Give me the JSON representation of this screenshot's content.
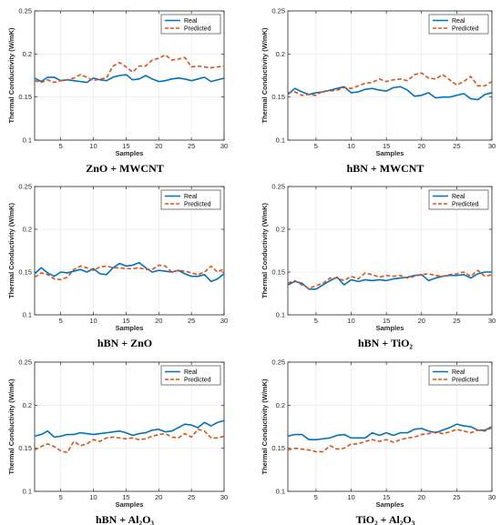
{
  "colors": {
    "real": "#0072BD",
    "predicted": "#D95319",
    "axis": "#262626",
    "grid": "#e6e6e6"
  },
  "chart_data": [
    {
      "type": "line",
      "caption": "ZnO + MWCNT",
      "xlabel": "Samples",
      "ylabel": "Thermal Conductivity (W/mK)",
      "xlim": [
        1,
        30
      ],
      "ylim": [
        0.1,
        0.25
      ],
      "xticks": [
        "5",
        "10",
        "15",
        "20",
        "25",
        "30"
      ],
      "yticks": [
        "0.1",
        "0.15",
        "0.2",
        "0.25"
      ],
      "legend": [
        "Real",
        "Predicted"
      ],
      "legend_position": "top-right",
      "x": [
        1,
        2,
        3,
        4,
        5,
        6,
        7,
        8,
        9,
        10,
        11,
        12,
        13,
        14,
        15,
        16,
        17,
        18,
        19,
        20,
        21,
        22,
        23,
        24,
        25,
        26,
        27,
        28,
        29,
        30
      ],
      "series": [
        {
          "name": "Real",
          "values": [
            0.172,
            0.168,
            0.173,
            0.173,
            0.169,
            0.17,
            0.169,
            0.168,
            0.167,
            0.172,
            0.17,
            0.169,
            0.173,
            0.175,
            0.176,
            0.17,
            0.171,
            0.175,
            0.171,
            0.168,
            0.169,
            0.171,
            0.172,
            0.171,
            0.169,
            0.171,
            0.173,
            0.168,
            0.17,
            0.172
          ]
        },
        {
          "name": "Predicted",
          "values": [
            0.169,
            0.167,
            0.17,
            0.167,
            0.169,
            0.17,
            0.172,
            0.176,
            0.173,
            0.169,
            0.171,
            0.172,
            0.186,
            0.19,
            0.185,
            0.179,
            0.186,
            0.186,
            0.193,
            0.195,
            0.199,
            0.193,
            0.194,
            0.196,
            0.185,
            0.186,
            0.185,
            0.184,
            0.185,
            0.186
          ]
        }
      ]
    },
    {
      "type": "line",
      "caption": "hBN + MWCNT",
      "xlabel": "Samples",
      "ylabel": "Thermal Conductivity (W/mK)",
      "xlim": [
        1,
        30
      ],
      "ylim": [
        0.1,
        0.25
      ],
      "xticks": [
        "5",
        "10",
        "15",
        "20",
        "25",
        "30"
      ],
      "yticks": [
        "0.1",
        "0.15",
        "0.2",
        "0.25"
      ],
      "legend": [
        "Real",
        "Predicted"
      ],
      "legend_position": "top-right",
      "x": [
        1,
        2,
        3,
        4,
        5,
        6,
        7,
        8,
        9,
        10,
        11,
        12,
        13,
        14,
        15,
        16,
        17,
        18,
        19,
        20,
        21,
        22,
        23,
        24,
        25,
        26,
        27,
        28,
        29,
        30
      ],
      "series": [
        {
          "name": "Real",
          "values": [
            0.153,
            0.16,
            0.156,
            0.153,
            0.155,
            0.156,
            0.158,
            0.16,
            0.162,
            0.155,
            0.156,
            0.159,
            0.16,
            0.158,
            0.157,
            0.161,
            0.162,
            0.158,
            0.151,
            0.152,
            0.155,
            0.149,
            0.15,
            0.15,
            0.152,
            0.154,
            0.148,
            0.147,
            0.153,
            0.155
          ]
        },
        {
          "name": "Predicted",
          "values": [
            0.155,
            0.156,
            0.152,
            0.153,
            0.152,
            0.157,
            0.157,
            0.158,
            0.161,
            0.16,
            0.163,
            0.166,
            0.167,
            0.171,
            0.168,
            0.17,
            0.171,
            0.169,
            0.176,
            0.178,
            0.172,
            0.171,
            0.176,
            0.17,
            0.164,
            0.168,
            0.174,
            0.163,
            0.163,
            0.168
          ]
        }
      ]
    },
    {
      "type": "line",
      "caption": "hBN + ZnO",
      "xlabel": "Samples",
      "ylabel": "Thermal Conductivity (W/mK)",
      "xlim": [
        1,
        30
      ],
      "ylim": [
        0.1,
        0.25
      ],
      "xticks": [
        "5",
        "10",
        "15",
        "20",
        "25",
        "30"
      ],
      "yticks": [
        "0.1",
        "0.15",
        "0.2",
        "0.25"
      ],
      "legend": [
        "Real",
        "Predicted"
      ],
      "legend_position": "top-right",
      "x": [
        1,
        2,
        3,
        4,
        5,
        6,
        7,
        8,
        9,
        10,
        11,
        12,
        13,
        14,
        15,
        16,
        17,
        18,
        19,
        20,
        21,
        22,
        23,
        24,
        25,
        26,
        27,
        28,
        29,
        30
      ],
      "series": [
        {
          "name": "Real",
          "values": [
            0.148,
            0.155,
            0.149,
            0.145,
            0.15,
            0.149,
            0.151,
            0.153,
            0.15,
            0.154,
            0.148,
            0.147,
            0.155,
            0.16,
            0.157,
            0.158,
            0.161,
            0.155,
            0.15,
            0.152,
            0.151,
            0.15,
            0.152,
            0.148,
            0.145,
            0.145,
            0.147,
            0.139,
            0.142,
            0.148
          ]
        },
        {
          "name": "Predicted",
          "values": [
            0.144,
            0.149,
            0.147,
            0.142,
            0.141,
            0.144,
            0.153,
            0.157,
            0.155,
            0.152,
            0.156,
            0.157,
            0.155,
            0.155,
            0.154,
            0.154,
            0.155,
            0.153,
            0.153,
            0.158,
            0.157,
            0.15,
            0.152,
            0.151,
            0.149,
            0.147,
            0.15,
            0.157,
            0.15,
            0.154
          ]
        }
      ]
    },
    {
      "type": "line",
      "caption": "hBN + TiO₂",
      "xlabel": "Samples",
      "ylabel": "Thermal Conductivity (W/mK)",
      "xlim": [
        1,
        30
      ],
      "ylim": [
        0.1,
        0.25
      ],
      "xticks": [
        "5",
        "10",
        "15",
        "20",
        "25",
        "30"
      ],
      "yticks": [
        "0.1",
        "0.15",
        "0.2",
        "0.25"
      ],
      "legend": [
        "Real",
        "Predicted"
      ],
      "legend_position": "top-right",
      "x": [
        1,
        2,
        3,
        4,
        5,
        6,
        7,
        8,
        9,
        10,
        11,
        12,
        13,
        14,
        15,
        16,
        17,
        18,
        19,
        20,
        21,
        22,
        23,
        24,
        25,
        26,
        27,
        28,
        29,
        30
      ],
      "series": [
        {
          "name": "Real",
          "values": [
            0.135,
            0.139,
            0.137,
            0.13,
            0.13,
            0.135,
            0.14,
            0.144,
            0.135,
            0.141,
            0.139,
            0.141,
            0.14,
            0.141,
            0.14,
            0.142,
            0.143,
            0.144,
            0.146,
            0.147,
            0.14,
            0.143,
            0.145,
            0.146,
            0.146,
            0.147,
            0.143,
            0.148,
            0.15,
            0.15
          ]
        },
        {
          "name": "Predicted",
          "values": [
            0.137,
            0.14,
            0.135,
            0.131,
            0.134,
            0.137,
            0.143,
            0.143,
            0.14,
            0.145,
            0.142,
            0.149,
            0.147,
            0.144,
            0.146,
            0.145,
            0.146,
            0.143,
            0.145,
            0.147,
            0.148,
            0.146,
            0.145,
            0.147,
            0.148,
            0.15,
            0.145,
            0.152,
            0.145,
            0.147
          ]
        }
      ]
    },
    {
      "type": "line",
      "caption": "hBN + Al₂O₃",
      "xlabel": "Samples",
      "ylabel": "Thermal Conductivity (W/mK)",
      "xlim": [
        1,
        30
      ],
      "ylim": [
        0.1,
        0.25
      ],
      "xticks": [
        "5",
        "10",
        "15",
        "20",
        "25",
        "30"
      ],
      "yticks": [
        "0.1",
        "0.15",
        "0.2",
        "0.25"
      ],
      "legend": [
        "Real",
        "Predicted"
      ],
      "legend_position": "top-right",
      "x": [
        1,
        2,
        3,
        4,
        5,
        6,
        7,
        8,
        9,
        10,
        11,
        12,
        13,
        14,
        15,
        16,
        17,
        18,
        19,
        20,
        21,
        22,
        23,
        24,
        25,
        26,
        27,
        28,
        29,
        30
      ],
      "series": [
        {
          "name": "Real",
          "values": [
            0.164,
            0.166,
            0.17,
            0.163,
            0.164,
            0.166,
            0.166,
            0.168,
            0.167,
            0.166,
            0.167,
            0.168,
            0.169,
            0.17,
            0.168,
            0.165,
            0.167,
            0.168,
            0.171,
            0.172,
            0.169,
            0.17,
            0.174,
            0.178,
            0.177,
            0.174,
            0.18,
            0.176,
            0.18,
            0.182
          ]
        },
        {
          "name": "Predicted",
          "values": [
            0.148,
            0.152,
            0.155,
            0.152,
            0.147,
            0.145,
            0.158,
            0.153,
            0.155,
            0.16,
            0.158,
            0.162,
            0.163,
            0.162,
            0.161,
            0.162,
            0.16,
            0.161,
            0.164,
            0.166,
            0.167,
            0.163,
            0.162,
            0.167,
            0.163,
            0.172,
            0.17,
            0.162,
            0.162,
            0.164
          ]
        }
      ]
    },
    {
      "type": "line",
      "caption": "TiO₂ + Al₂O₃",
      "xlabel": "Samples",
      "ylabel": "Thermal Conductivity (W/mK)",
      "xlim": [
        1,
        30
      ],
      "ylim": [
        0.1,
        0.25
      ],
      "xticks": [
        "5",
        "10",
        "15",
        "20",
        "25",
        "30"
      ],
      "yticks": [
        "0.1",
        "0.15",
        "0.2",
        "0.25"
      ],
      "legend": [
        "Real",
        "Predicted"
      ],
      "legend_position": "top-right",
      "x": [
        1,
        2,
        3,
        4,
        5,
        6,
        7,
        8,
        9,
        10,
        11,
        12,
        13,
        14,
        15,
        16,
        17,
        18,
        19,
        20,
        21,
        22,
        23,
        24,
        25,
        26,
        27,
        28,
        29,
        30
      ],
      "series": [
        {
          "name": "Real",
          "values": [
            0.164,
            0.166,
            0.166,
            0.16,
            0.16,
            0.161,
            0.162,
            0.165,
            0.166,
            0.162,
            0.162,
            0.162,
            0.168,
            0.165,
            0.168,
            0.165,
            0.168,
            0.168,
            0.172,
            0.173,
            0.17,
            0.168,
            0.171,
            0.174,
            0.178,
            0.176,
            0.175,
            0.171,
            0.171,
            0.175
          ]
        },
        {
          "name": "Predicted",
          "values": [
            0.148,
            0.15,
            0.149,
            0.148,
            0.146,
            0.146,
            0.153,
            0.149,
            0.15,
            0.155,
            0.155,
            0.158,
            0.16,
            0.158,
            0.16,
            0.157,
            0.16,
            0.162,
            0.163,
            0.166,
            0.167,
            0.169,
            0.167,
            0.169,
            0.172,
            0.17,
            0.168,
            0.171,
            0.17,
            0.174
          ]
        }
      ]
    }
  ]
}
